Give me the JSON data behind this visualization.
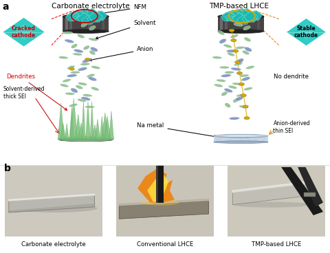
{
  "panel_a_label": "a",
  "panel_b_label": "b",
  "title_left": "Carbonate electrolyte",
  "title_right": "TMP-based LHCE",
  "panel_b_labels": [
    "Carbonate electrolyte",
    "Conventional LHCE",
    "TMP-based LHCE"
  ],
  "teal_color": "#1ec8c0",
  "teal_dark": "#0a9e96",
  "green_ellipse_color": "#8abd8a",
  "blue_ellipse_color": "#7a8ec0",
  "gold_color": "#d4a800",
  "dendrite_color": "#7abf7a",
  "red_color": "#cc0000",
  "orange_color": "#e8820a"
}
